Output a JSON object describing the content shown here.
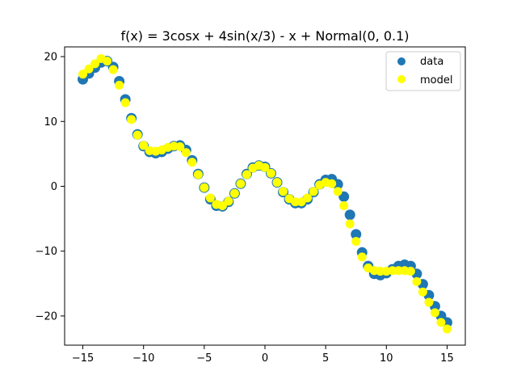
{
  "chart_data": {
    "type": "scatter",
    "title": "f(x) = 3cosx + 4sin(x/3) - x + Normal(0, 0.1)",
    "xlabel": "",
    "ylabel": "",
    "xlim": [
      -16.5,
      16.5
    ],
    "ylim": [
      -24.5,
      21.5
    ],
    "xticks": [
      -15,
      -10,
      -5,
      0,
      5,
      10,
      15
    ],
    "xtick_labels": [
      "−15",
      "−10",
      "−5",
      "0",
      "5",
      "10",
      "15"
    ],
    "yticks": [
      -20,
      -10,
      0,
      10,
      20
    ],
    "ytick_labels": [
      "−20",
      "−10",
      "0",
      "10",
      "20"
    ],
    "grid": false,
    "legend": "top-right",
    "series": [
      {
        "name": "data",
        "color": "#1f77b4",
        "x": [
          -15.0,
          -14.5,
          -14.0,
          -13.5,
          -13.0,
          -12.5,
          -12.0,
          -11.5,
          -11.0,
          -10.5,
          -10.0,
          -9.5,
          -9.0,
          -8.5,
          -8.0,
          -7.5,
          -7.0,
          -6.5,
          -6.0,
          -5.5,
          -5.0,
          -4.5,
          -4.0,
          -3.5,
          -3.0,
          -2.5,
          -2.0,
          -1.5,
          -1.0,
          -0.5,
          0.0,
          0.5,
          1.0,
          1.5,
          2.0,
          2.5,
          3.0,
          3.5,
          4.0,
          4.5,
          5.0,
          5.5,
          6.0,
          6.5,
          7.0,
          7.5,
          8.0,
          8.5,
          9.0,
          9.5,
          10.0,
          10.5,
          11.0,
          11.5,
          12.0,
          12.5,
          13.0,
          13.5,
          14.0,
          14.5,
          15.0
        ],
        "y": [
          16.5,
          17.4,
          18.3,
          19.1,
          19.3,
          18.4,
          16.2,
          13.4,
          10.5,
          8.0,
          6.2,
          5.3,
          5.1,
          5.3,
          5.8,
          6.2,
          6.3,
          5.6,
          4.0,
          1.9,
          -0.2,
          -2.0,
          -3.0,
          -3.1,
          -2.4,
          -1.1,
          0.4,
          1.9,
          2.9,
          3.2,
          3.0,
          2.0,
          0.6,
          -0.9,
          -2.0,
          -2.6,
          -2.6,
          -2.0,
          -0.9,
          0.3,
          1.0,
          1.1,
          0.3,
          -1.6,
          -4.4,
          -7.4,
          -10.2,
          -12.3,
          -13.5,
          -13.7,
          -13.4,
          -12.8,
          -12.3,
          -12.1,
          -12.3,
          -13.5,
          -15.1,
          -16.8,
          -18.5,
          -20.0,
          -21.0
        ]
      },
      {
        "name": "model",
        "color": "#ffff00",
        "x": [
          -15.0,
          -14.5,
          -14.0,
          -13.5,
          -13.0,
          -12.5,
          -12.0,
          -11.5,
          -11.0,
          -10.5,
          -10.0,
          -9.5,
          -9.0,
          -8.5,
          -8.0,
          -7.5,
          -7.0,
          -6.5,
          -6.0,
          -5.5,
          -5.0,
          -4.5,
          -4.0,
          -3.5,
          -3.0,
          -2.5,
          -2.0,
          -1.5,
          -1.0,
          -0.5,
          0.0,
          0.5,
          1.0,
          1.5,
          2.0,
          2.5,
          3.0,
          3.5,
          4.0,
          4.5,
          5.0,
          5.5,
          6.0,
          6.5,
          7.0,
          7.5,
          8.0,
          8.5,
          9.0,
          9.5,
          10.0,
          10.5,
          11.0,
          11.5,
          12.0,
          12.5,
          13.0,
          13.5,
          14.0,
          14.5,
          15.0
        ],
        "y": [
          17.3,
          18.1,
          18.9,
          19.7,
          19.3,
          18.0,
          15.6,
          12.9,
          10.3,
          7.9,
          6.3,
          5.5,
          5.4,
          5.6,
          6.0,
          6.2,
          6.1,
          5.2,
          3.7,
          1.8,
          -0.2,
          -1.8,
          -2.8,
          -3.0,
          -2.3,
          -1.1,
          0.4,
          1.8,
          2.8,
          3.2,
          2.9,
          2.0,
          0.6,
          -0.8,
          -1.9,
          -2.4,
          -2.4,
          -1.8,
          -0.8,
          0.2,
          0.6,
          0.4,
          -0.8,
          -3.0,
          -5.8,
          -8.5,
          -10.9,
          -12.6,
          -13.0,
          -13.1,
          -13.1,
          -13.0,
          -13.0,
          -13.0,
          -13.1,
          -14.7,
          -16.3,
          -17.9,
          -19.5,
          -21.0,
          -22.0
        ]
      }
    ]
  }
}
